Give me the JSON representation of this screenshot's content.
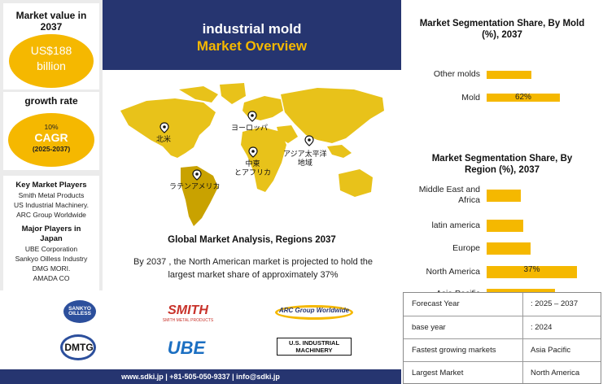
{
  "left_panel": {
    "market_value_label": "Market value in 2037",
    "market_value": "US$188 billion",
    "growth_rate_label": "growth rate",
    "cagr_value": "10%",
    "cagr_label": "CAGR",
    "cagr_period": "(2025-2037)",
    "key_players_title": "Key Market Players",
    "key_players": [
      "Smith Metal Products",
      "US Industrial Machinery.",
      "ARC Group Worldwide"
    ],
    "japan_players_title": "Major Players in Japan",
    "japan_players": [
      "UBE Corporation",
      "Sankyo Oilless Industry",
      "DMG MORI.",
      "AMADA CO"
    ]
  },
  "header": {
    "title": "industrial mold",
    "subtitle": "Market Overview"
  },
  "map": {
    "labels": [
      "北米",
      "ヨーロッパ",
      "アジア太平洋\n地域",
      "中東\nとアフリカ",
      "ラテンアメリカ"
    ],
    "caption": "Global Market Analysis, Regions 2037",
    "description": "By 2037 , the North American market is projected to hold the largest market share of approximately 37%",
    "colors": {
      "land": "#e8c21a",
      "dark": "#c9a200"
    }
  },
  "logos": [
    "SANKYO OILLESS",
    "SMITH METAL PRODUCTS",
    "ARC Group Worldwide",
    "DMTG",
    "UBE",
    "U.S. INDUSTRIAL MACHINERY"
  ],
  "footer": "www.sdki.jp | +81-505-050-9337 | info@sdki.jp",
  "chart_data": [
    {
      "type": "bar",
      "orientation": "horizontal",
      "title": "Market Segmentation Share, By Mold (%), 2037",
      "categories": [
        "Other molds",
        "Mold"
      ],
      "values": [
        38,
        62
      ],
      "data_labels": [
        "",
        "62%"
      ],
      "color": "#f5b800"
    },
    {
      "type": "bar",
      "orientation": "horizontal",
      "title": "Market Segmentation Share, By Region (%), 2037",
      "categories": [
        "Middle East and Africa",
        "latin america",
        "Europe",
        "North America",
        "Asia Pacific"
      ],
      "values": [
        14,
        15,
        18,
        37,
        28
      ],
      "data_labels": [
        "",
        "",
        "",
        "37%",
        ""
      ],
      "color": "#f5b800"
    }
  ],
  "table": {
    "rows": [
      {
        "label": "Forecast Year",
        "value": ": 2025 – 2037"
      },
      {
        "label": "base year",
        "value": ": 2024"
      },
      {
        "label": "Fastest growing markets",
        "value": "Asia Pacific"
      },
      {
        "label": "Largest Market",
        "value": "North America"
      }
    ]
  }
}
